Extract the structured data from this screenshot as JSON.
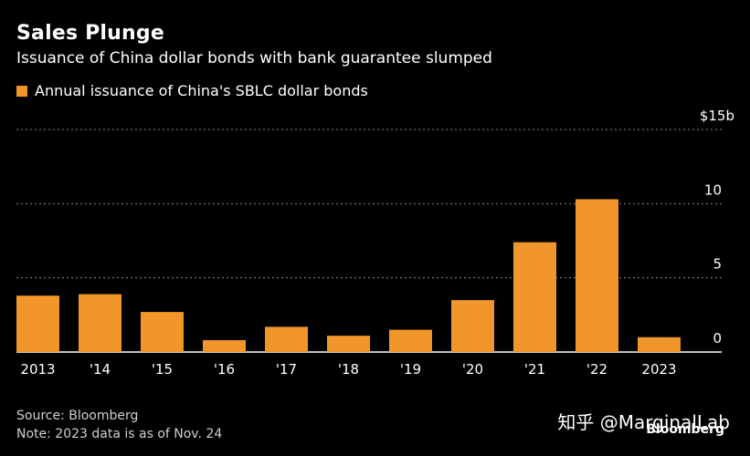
{
  "header": {
    "title": "Sales Plunge",
    "subtitle": "Issuance of China dollar bonds with bank guarantee slumped"
  },
  "legend": {
    "label": "Annual issuance of China's SBLC dollar bonds"
  },
  "footer": {
    "source": "Source: Bloomberg",
    "note": "Note: 2023 data is as of Nov. 24",
    "watermark": "知乎 @MarginalLab",
    "brand": "Bloomberg"
  },
  "colors": {
    "bar": "#F0962A",
    "background": "#000000",
    "grid": "#8a8a8a"
  },
  "chart_data": {
    "type": "bar",
    "title": "Sales Plunge",
    "subtitle": "Issuance of China dollar bonds with bank guarantee slumped",
    "categories": [
      "2013",
      "'14",
      "'15",
      "'16",
      "'17",
      "'18",
      "'19",
      "'20",
      "'21",
      "'22",
      "2023"
    ],
    "series": [
      {
        "name": "Annual issuance of China's SBLC dollar bonds",
        "values": [
          3.8,
          3.9,
          2.7,
          0.8,
          1.7,
          1.1,
          1.5,
          3.5,
          7.4,
          10.3,
          1.0
        ]
      }
    ],
    "ylim": [
      0,
      15
    ],
    "yticks": [
      {
        "value": 0,
        "label": "0"
      },
      {
        "value": 5,
        "label": "5"
      },
      {
        "value": 10,
        "label": "10"
      },
      {
        "value": 15,
        "label": "$15b"
      }
    ],
    "grid": true,
    "legend_position": "top-left",
    "ylabel": "",
    "xlabel": ""
  }
}
